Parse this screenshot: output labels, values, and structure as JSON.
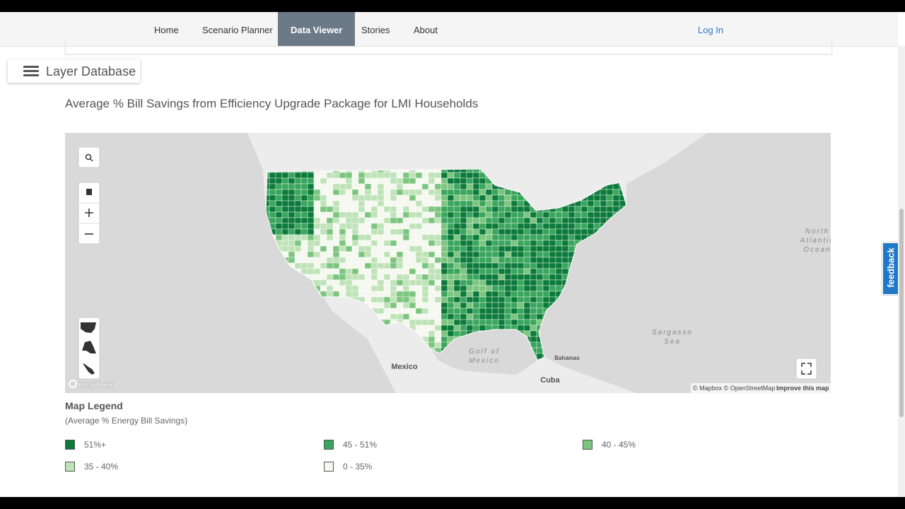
{
  "nav": {
    "items": [
      "Home",
      "Scenario Planner",
      "Data Viewer",
      "Stories",
      "About"
    ],
    "active": "Data Viewer",
    "login": "Log In"
  },
  "layer_toggle": "Layer Database",
  "title": "Average % Bill Savings from Efficiency Upgrade Package for LMI Households",
  "map": {
    "ocean_labels": [
      [
        "North",
        "Atlantic",
        "Ocean"
      ],
      [
        "Gulf of",
        "Mexico"
      ],
      [
        "Sargasso",
        "Sea"
      ]
    ],
    "country_labels": [
      "Mexico",
      "Cuba",
      "Bahamas"
    ],
    "logo": "mapbox",
    "attribution": "© Mapbox © OpenStreetMap",
    "improve": "Improve this map"
  },
  "legend": {
    "title": "Map Legend",
    "subtitle": "(Average % Energy Bill Savings)",
    "items": [
      {
        "label": "51%+",
        "color": "#0b7a3a"
      },
      {
        "label": "45 - 51%",
        "color": "#3aa55c"
      },
      {
        "label": "40 - 45%",
        "color": "#7cc57f"
      },
      {
        "label": "35 - 40%",
        "color": "#bfe3b8"
      },
      {
        "label": "0 - 35%",
        "color": "#f4f8ee"
      }
    ]
  },
  "feedback": "feedback"
}
